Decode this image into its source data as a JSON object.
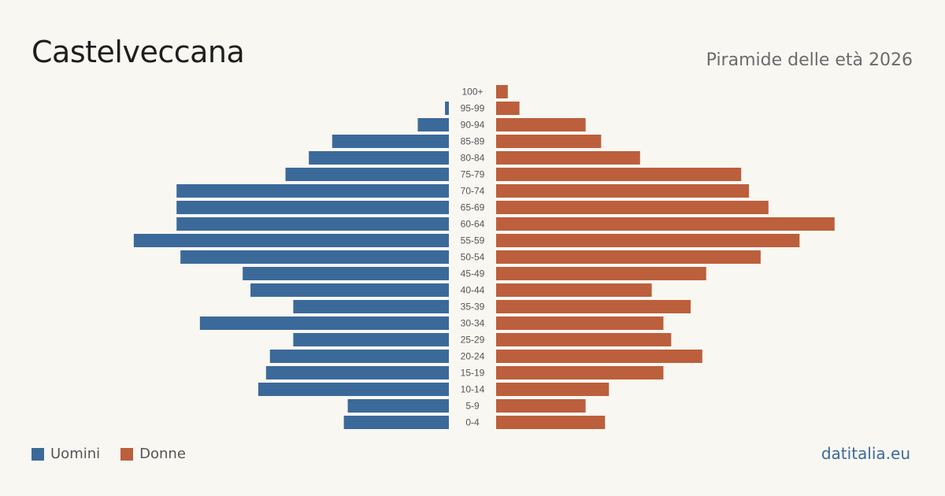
{
  "header": {
    "title": "Castelveccana",
    "subtitle": "Piramide delle età 2026"
  },
  "legend": {
    "men_label": "Uomini",
    "women_label": "Donne"
  },
  "footer": {
    "source": "datitalia.eu"
  },
  "colors": {
    "men": "#3b6a9a",
    "women": "#bc5f3c",
    "label": "#555555",
    "source": "#3b6a9a"
  },
  "chart_data": {
    "type": "bar",
    "orientation": "horizontal-pyramid",
    "title": "Piramide delle età 2026",
    "categories": [
      "100+",
      "95-99",
      "90-94",
      "85-89",
      "80-84",
      "75-79",
      "70-74",
      "65-69",
      "60-64",
      "55-59",
      "50-54",
      "45-49",
      "40-44",
      "35-39",
      "30-34",
      "25-29",
      "20-24",
      "15-19",
      "10-14",
      "5-9",
      "0-4"
    ],
    "series": [
      {
        "name": "Uomini",
        "values": [
          0,
          1,
          8,
          30,
          36,
          42,
          70,
          70,
          70,
          81,
          69,
          53,
          51,
          40,
          64,
          40,
          46,
          47,
          49,
          26,
          27
        ]
      },
      {
        "name": "Donne",
        "values": [
          3,
          6,
          23,
          27,
          37,
          63,
          65,
          70,
          87,
          78,
          68,
          54,
          40,
          50,
          43,
          45,
          53,
          43,
          29,
          23,
          28
        ]
      }
    ],
    "legend_position": "bottom-left",
    "grid": false
  }
}
